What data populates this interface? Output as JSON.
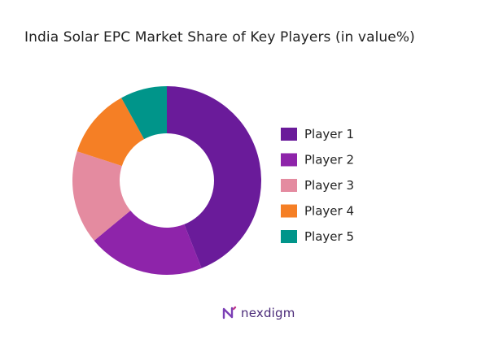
{
  "chart_data": {
    "type": "pie",
    "title": "India Solar EPC Market Share of Key Players (in value%)",
    "categories": [
      "Player 1",
      "Player 2",
      "Player 3",
      "Player 4",
      "Player 5"
    ],
    "values": [
      44,
      20,
      16,
      12,
      8
    ],
    "colors": [
      "#6a1b9a",
      "#8e24aa",
      "#e48ba0",
      "#f57f25",
      "#00958a"
    ],
    "donut": true,
    "legend_placement": "right"
  },
  "brand": {
    "name": "nexdigm",
    "logo_icon": "nexdigm-logo-icon"
  }
}
